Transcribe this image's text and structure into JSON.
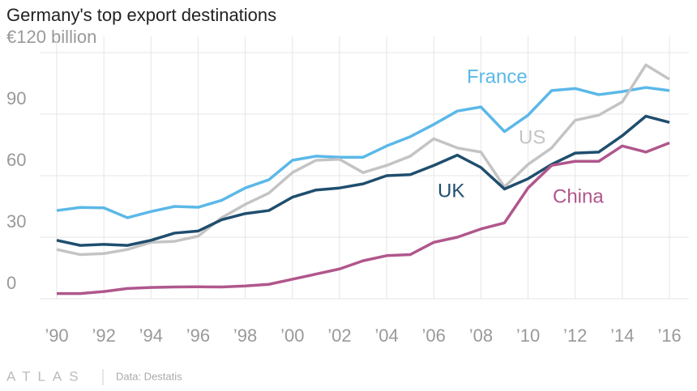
{
  "chart_data": {
    "type": "line",
    "title": "Germany's top export destinations",
    "source": "Data: Destatis",
    "brand": "ATLAS",
    "x": [
      1990,
      1991,
      1992,
      1993,
      1994,
      1995,
      1996,
      1997,
      1998,
      1999,
      2000,
      2001,
      2002,
      2003,
      2004,
      2005,
      2006,
      2007,
      2008,
      2009,
      2010,
      2011,
      2012,
      2013,
      2014,
      2015,
      2016
    ],
    "xlim": [
      1990,
      2016
    ],
    "xticks": [
      {
        "value": 1990,
        "label": "’90"
      },
      {
        "value": 1992,
        "label": "’92"
      },
      {
        "value": 1994,
        "label": "’94"
      },
      {
        "value": 1996,
        "label": "’96"
      },
      {
        "value": 1998,
        "label": "’98"
      },
      {
        "value": 2000,
        "label": "’00"
      },
      {
        "value": 2002,
        "label": "’02"
      },
      {
        "value": 2004,
        "label": "’04"
      },
      {
        "value": 2006,
        "label": "’06"
      },
      {
        "value": 2008,
        "label": "’08"
      },
      {
        "value": 2010,
        "label": "’10"
      },
      {
        "value": 2012,
        "label": "’12"
      },
      {
        "value": 2014,
        "label": "’14"
      },
      {
        "value": 2016,
        "label": "’16"
      }
    ],
    "ylim": [
      0,
      120
    ],
    "yticks": [
      0,
      30,
      60,
      90,
      {
        "value": 120,
        "label": "€120 billion"
      }
    ],
    "grid": true,
    "series": [
      {
        "name": "France",
        "color": "#5bb8e8",
        "values": [
          43,
          44.5,
          44.3,
          39.5,
          42.5,
          45,
          44.6,
          48,
          54,
          58,
          67.5,
          69.5,
          69,
          69,
          74.5,
          79,
          85,
          91.5,
          93.5,
          81.5,
          89.5,
          101.5,
          102.5,
          99.5,
          101,
          103,
          101.5
        ]
      },
      {
        "name": "US",
        "color": "#c4c4c4",
        "values": [
          24,
          21.5,
          22,
          24,
          27.5,
          28,
          30.5,
          39.5,
          46,
          51.5,
          61.5,
          67.5,
          68,
          61.5,
          65,
          69.5,
          78,
          73.5,
          71.5,
          54.5,
          65.5,
          73.5,
          87,
          89.5,
          96,
          114,
          107
        ]
      },
      {
        "name": "UK",
        "color": "#1f4e6e",
        "values": [
          28.5,
          26,
          26.5,
          26,
          28.5,
          32,
          33,
          38.5,
          41.5,
          43,
          49.5,
          53,
          54,
          56,
          60,
          60.5,
          65,
          70,
          64,
          53.5,
          58.5,
          65.5,
          71,
          71.5,
          79.5,
          89,
          86
        ]
      },
      {
        "name": "China",
        "color": "#b0578c",
        "values": [
          2.5,
          2.5,
          3.5,
          5,
          5.5,
          5.7,
          5.8,
          5.7,
          6.2,
          7,
          9.5,
          12,
          14.5,
          18.5,
          21,
          21.5,
          27.5,
          30,
          34,
          37,
          54,
          65,
          67,
          67,
          74.5,
          71.5,
          76
        ]
      }
    ]
  }
}
